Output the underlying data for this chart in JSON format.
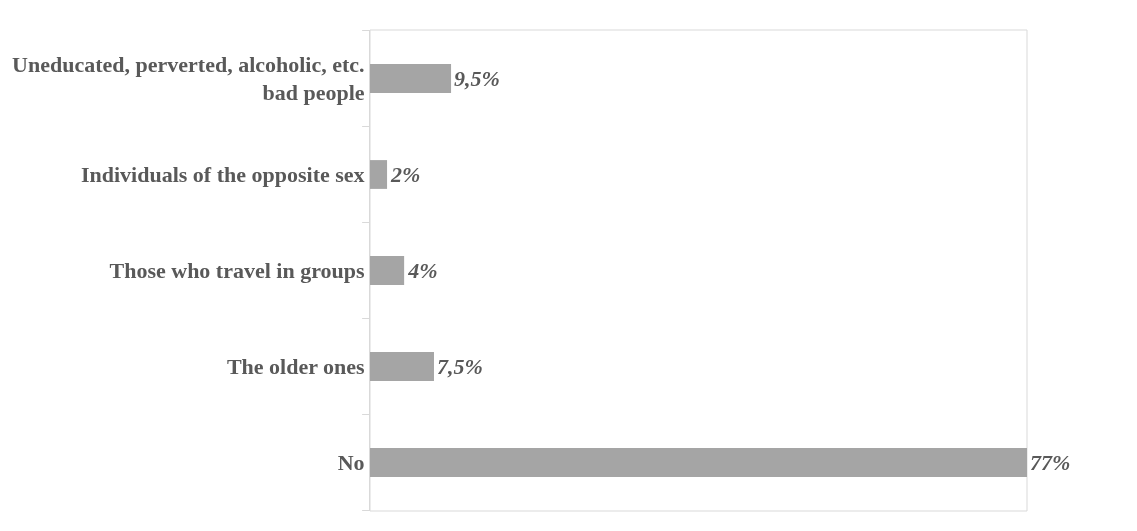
{
  "chart_data": {
    "type": "bar",
    "orientation": "horizontal",
    "categories": [
      "Uneducated, perverted, alcoholic, etc. bad people",
      "Individuals of the opposite sex",
      "Those who travel in groups",
      "The older ones",
      "No"
    ],
    "values": [
      9.5,
      2,
      4,
      7.5,
      77
    ],
    "value_labels": [
      "9,5%",
      "2%",
      "4%",
      "7,5%",
      "77%"
    ],
    "color": "#a5a5a5",
    "legend": false
  }
}
